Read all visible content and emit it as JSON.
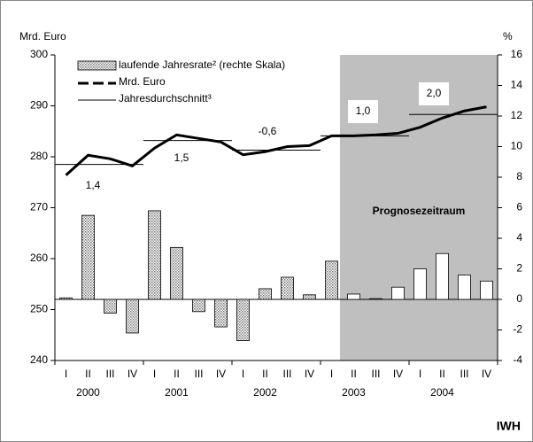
{
  "chart_data": {
    "type": "bar_line",
    "y_label": "Mrd. Euro",
    "y2_label": "%",
    "categories": [
      "I",
      "II",
      "III",
      "IV",
      "I",
      "II",
      "III",
      "IV",
      "I",
      "II",
      "III",
      "IV",
      "I",
      "II",
      "III",
      "IV",
      "I",
      "II",
      "III",
      "IV"
    ],
    "years": [
      "2000",
      "2001",
      "2002",
      "2003",
      "2004"
    ],
    "ylim": [
      240,
      300
    ],
    "yticks": [
      240,
      250,
      260,
      270,
      280,
      290,
      300
    ],
    "y2lim": [
      -4,
      16
    ],
    "y2ticks": [
      -4,
      -2,
      0,
      2,
      4,
      6,
      8,
      10,
      12,
      14,
      16
    ],
    "series": [
      {
        "name": "laufende Jahresrate² (rechte Skala)",
        "type": "bar",
        "axis": "y2",
        "color": "#999999",
        "values": [
          0.1,
          5.5,
          -0.9,
          -2.2,
          5.8,
          3.4,
          -0.8,
          -1.8,
          -2.7,
          0.7,
          1.45,
          0.3,
          2.5,
          0.35,
          0.05,
          0.8,
          2.0,
          3.0,
          1.6,
          1.2
        ]
      },
      {
        "name": "Mrd. Euro",
        "type": "line",
        "color": "#000000",
        "values": [
          276.4,
          280.3,
          279.6,
          278.2,
          281.7,
          284.3,
          283.6,
          282.9,
          280.4,
          281.0,
          282.0,
          282.2,
          284.1,
          284.1,
          284.3,
          284.6,
          285.8,
          287.6,
          289.0,
          289.8
        ]
      },
      {
        "name": "Jahresdurchschnitt³",
        "type": "average",
        "color": "#000000",
        "values": [
          278.5,
          278.5,
          278.5,
          278.5,
          283.2,
          283.2,
          283.2,
          283.2,
          281.3,
          281.3,
          281.3,
          281.3,
          284.1,
          284.1,
          284.1,
          284.1,
          288.3,
          288.3,
          288.3,
          288.3
        ]
      }
    ],
    "annotations": [
      "1,4",
      "1,5",
      "-0,6",
      "1,0",
      "2,0"
    ],
    "shaded_label": "Prognosezeitraum",
    "source": "IWH"
  }
}
